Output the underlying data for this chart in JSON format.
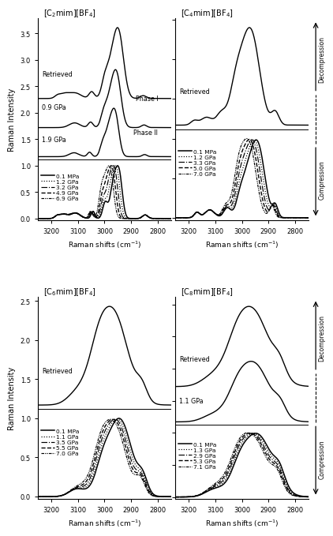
{
  "panels": [
    {
      "title": "[C$_2$mim][BF$_4$]",
      "panel_idx": 0,
      "row": 0,
      "col": 0,
      "decompression_traces": [
        {
          "label": "Retrieved",
          "x_label": 3230,
          "linestyle": "solid"
        },
        {
          "label": "0.9 GPa",
          "x_label": 3230,
          "linestyle": "solid"
        },
        {
          "label": "1.9 GPa",
          "x_label": 3230,
          "linestyle": "solid"
        }
      ],
      "phase_labels": [
        {
          "text": "Phase I",
          "trace_idx": 1
        },
        {
          "text": "Phase II",
          "trace_idx": 2
        }
      ],
      "compression_traces": [
        {
          "label": "0.1 MPa",
          "linestyle": "solid"
        },
        {
          "label": "1.2 GPa",
          "linestyle": "dotted"
        },
        {
          "label": "3.2 GPa",
          "linestyle": "dashdot"
        },
        {
          "label": "4.9 GPa",
          "linestyle": "dashed"
        },
        {
          "label": "6.9 GPa",
          "linestyle": "dashdotdotted"
        }
      ],
      "has_ylabel": true
    },
    {
      "title": "[C$_4$mim][BF$_4$]",
      "panel_idx": 1,
      "row": 0,
      "col": 1,
      "decompression_traces": [
        {
          "label": "Retrieved",
          "x_label": 3230,
          "linestyle": "solid"
        }
      ],
      "phase_labels": [],
      "compression_traces": [
        {
          "label": "0.1 MPa",
          "linestyle": "solid"
        },
        {
          "label": "1.2 GPa",
          "linestyle": "dotted"
        },
        {
          "label": "3.3 GPa",
          "linestyle": "dashdot"
        },
        {
          "label": "5.0 GPa",
          "linestyle": "dashed"
        },
        {
          "label": "7.0 GPa",
          "linestyle": "dashdotdotted"
        }
      ],
      "has_ylabel": false
    },
    {
      "title": "[C$_6$mim][BF$_4$]",
      "panel_idx": 2,
      "row": 1,
      "col": 0,
      "decompression_traces": [
        {
          "label": "Retrieved",
          "x_label": 3230,
          "linestyle": "solid"
        }
      ],
      "phase_labels": [],
      "compression_traces": [
        {
          "label": "0.1 MPa",
          "linestyle": "solid"
        },
        {
          "label": "1.1 GPa",
          "linestyle": "dotted"
        },
        {
          "label": "3.5 GPa",
          "linestyle": "dashdot"
        },
        {
          "label": "5.5 GPa",
          "linestyle": "dashed"
        },
        {
          "label": "7.0 GPa",
          "linestyle": "dashdotdotted"
        }
      ],
      "has_ylabel": true
    },
    {
      "title": "[C$_8$mim][BF$_4$]",
      "panel_idx": 3,
      "row": 1,
      "col": 1,
      "decompression_traces": [
        {
          "label": "Retrieved",
          "x_label": 3230,
          "linestyle": "solid"
        },
        {
          "label": "1.1 GPa",
          "x_label": 3230,
          "linestyle": "solid"
        }
      ],
      "phase_labels": [],
      "compression_traces": [
        {
          "label": "0.1 MPa",
          "linestyle": "solid"
        },
        {
          "label": "1.3 GPa",
          "linestyle": "dotted"
        },
        {
          "label": "2.9 GPa",
          "linestyle": "dashdot"
        },
        {
          "label": "5.3 GPa",
          "linestyle": "dashed"
        },
        {
          "label": "7.1 GPa",
          "linestyle": "dashdotdotted"
        }
      ],
      "has_ylabel": false
    }
  ],
  "xlabel": "Raman shifts (cm$^{-1}$)",
  "ylabel": "Raman Intensity",
  "xticks": [
    3200,
    3100,
    3000,
    2900,
    2800
  ],
  "xlim": [
    3250,
    2750
  ]
}
